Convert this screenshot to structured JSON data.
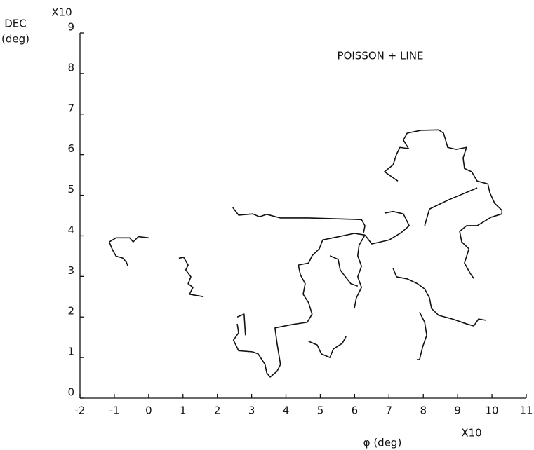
{
  "chart_data": {
    "type": "line",
    "title": "POISSON + LINE",
    "y_label": [
      "DEC",
      "(deg)"
    ],
    "y_multiplier": "X10",
    "x_label": "φ (deg)",
    "x_multiplier": "X10",
    "color": "#111111",
    "xlim": [
      -2,
      11
    ],
    "ylim": [
      0,
      9
    ],
    "xticks": [
      -2,
      -1,
      0,
      1,
      2,
      3,
      4,
      5,
      6,
      7,
      8,
      9,
      10,
      11
    ],
    "yticks": [
      0,
      1,
      2,
      3,
      4,
      5,
      6,
      7,
      8,
      9
    ],
    "series": [
      {
        "x": [
          -1.15,
          -0.95,
          -0.55,
          -0.45,
          -0.3,
          0.0
        ],
        "y": [
          3.85,
          3.95,
          3.95,
          3.85,
          3.98,
          3.95
        ]
      },
      {
        "x": [
          -1.15,
          -1.05,
          -0.95,
          -0.75,
          -0.65,
          -0.6
        ],
        "y": [
          3.85,
          3.65,
          3.5,
          3.45,
          3.35,
          3.25
        ]
      },
      {
        "x": [
          0.88,
          1.02,
          1.15,
          1.08,
          1.23,
          1.15,
          1.29,
          1.19,
          1.6
        ],
        "y": [
          3.45,
          3.47,
          3.28,
          3.16,
          2.99,
          2.82,
          2.73,
          2.56,
          2.5
        ]
      },
      {
        "x": [
          2.45,
          2.62,
          3.03,
          3.23,
          3.44,
          3.84,
          4.66,
          6.2,
          6.3,
          6.26
        ],
        "y": [
          4.7,
          4.51,
          4.54,
          4.47,
          4.53,
          4.44,
          4.44,
          4.4,
          4.25,
          4.08
        ]
      },
      {
        "x": [
          6.3,
          5.99,
          5.48,
          5.07,
          4.97,
          4.76,
          4.66,
          4.36,
          4.42,
          4.56,
          4.5,
          4.66,
          4.76,
          4.62,
          4.15,
          3.68,
          3.74,
          3.84,
          3.74,
          3.54,
          3.44,
          3.39,
          3.19,
          3.03,
          2.62,
          2.47,
          2.62,
          2.58
        ],
        "y": [
          4.02,
          4.06,
          3.97,
          3.9,
          3.68,
          3.51,
          3.33,
          3.28,
          3.04,
          2.82,
          2.56,
          2.35,
          2.07,
          1.87,
          1.81,
          1.73,
          1.35,
          0.83,
          0.66,
          0.52,
          0.62,
          0.83,
          1.09,
          1.14,
          1.17,
          1.43,
          1.61,
          1.83
        ]
      },
      {
        "x": [
          2.58,
          2.78,
          2.82
        ],
        "y": [
          2.0,
          2.07,
          1.55
        ]
      },
      {
        "x": [
          6.3,
          6.13,
          6.09,
          6.2,
          6.09,
          6.2,
          6.05,
          5.99
        ],
        "y": [
          4.02,
          3.77,
          3.51,
          3.25,
          2.99,
          2.73,
          2.47,
          2.21
        ]
      },
      {
        "x": [
          6.3,
          6.5,
          7.01,
          7.36,
          7.59,
          7.42,
          7.12,
          6.87
        ],
        "y": [
          4.02,
          3.8,
          3.9,
          4.08,
          4.25,
          4.54,
          4.6,
          4.56
        ]
      },
      {
        "x": [
          5.28,
          5.52,
          5.58,
          5.73,
          5.89,
          6.09
        ],
        "y": [
          3.51,
          3.42,
          3.16,
          2.99,
          2.82,
          2.76
        ]
      },
      {
        "x": [
          7.26,
          6.87,
          7.12,
          7.22,
          7.32,
          7.57,
          7.42,
          7.53,
          7.93,
          8.45,
          8.59,
          8.65,
          8.71,
          8.96,
          9.26,
          9.16,
          9.2,
          9.41,
          9.57,
          9.88,
          9.94,
          10.08,
          10.29,
          10.29,
          9.98,
          9.57,
          9.26,
          9.06,
          9.12,
          9.33,
          9.2,
          9.37,
          9.47
        ],
        "y": [
          5.35,
          5.58,
          5.75,
          6.01,
          6.18,
          6.15,
          6.36,
          6.53,
          6.6,
          6.61,
          6.53,
          6.36,
          6.18,
          6.13,
          6.18,
          5.92,
          5.66,
          5.58,
          5.35,
          5.28,
          5.06,
          4.8,
          4.63,
          4.54,
          4.46,
          4.25,
          4.25,
          4.11,
          3.85,
          3.68,
          3.33,
          3.07,
          2.95
        ]
      },
      {
        "x": [
          8.04,
          8.18,
          8.45,
          8.75,
          9.06,
          9.57
        ],
        "y": [
          4.25,
          4.66,
          4.77,
          4.89,
          5.0,
          5.18
        ]
      },
      {
        "x": [
          7.12,
          7.22,
          7.53,
          7.83,
          8.04,
          8.18,
          8.24,
          8.45,
          8.85,
          9.26,
          9.47,
          9.61,
          9.82
        ],
        "y": [
          3.2,
          2.99,
          2.94,
          2.82,
          2.69,
          2.47,
          2.21,
          2.04,
          1.95,
          1.83,
          1.78,
          1.95,
          1.92
        ]
      },
      {
        "x": [
          7.89,
          8.04,
          8.1,
          7.98,
          7.89,
          7.81
        ],
        "y": [
          2.12,
          1.87,
          1.55,
          1.26,
          0.95,
          0.95
        ]
      },
      {
        "x": [
          4.66,
          4.91,
          5.03,
          5.28,
          5.38,
          5.64,
          5.75
        ],
        "y": [
          1.4,
          1.31,
          1.09,
          1.0,
          1.21,
          1.35,
          1.52
        ]
      }
    ]
  }
}
